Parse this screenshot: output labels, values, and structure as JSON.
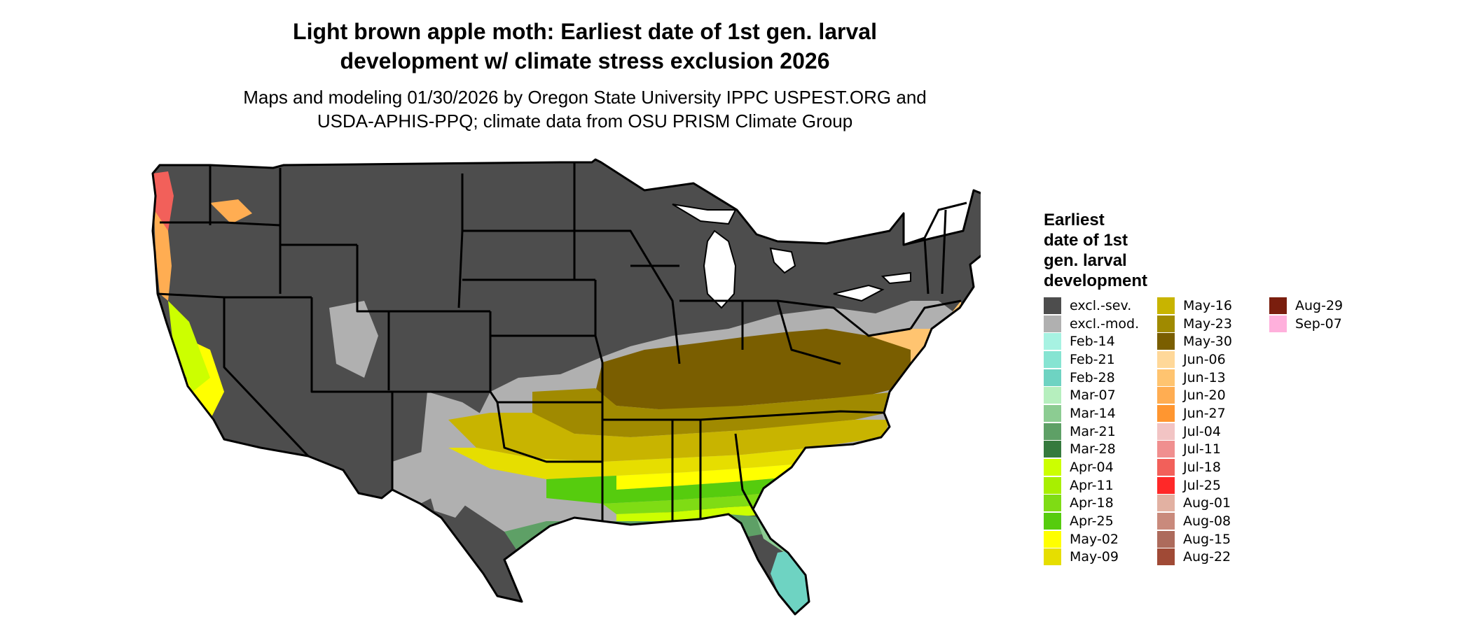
{
  "title_line1": "Light brown apple moth: Earliest date of 1st gen. larval",
  "title_line2": "development w/ climate stress exclusion 2026",
  "subtitle_line1": "Maps and modeling 01/30/2026 by Oregon State University IPPC USPEST.ORG and",
  "subtitle_line2": "USDA-APHIS-PPQ; climate data from OSU PRISM Climate Group",
  "legend": {
    "title_lines": [
      "Earliest",
      "date of 1st",
      "gen. larval",
      "development"
    ],
    "items": [
      {
        "label": "excl.-sev.",
        "color": "#4d4d4d"
      },
      {
        "label": "excl.-mod.",
        "color": "#b0b0b0"
      },
      {
        "label": "Feb-14",
        "color": "#a7f2e2"
      },
      {
        "label": "Feb-21",
        "color": "#86e4d2"
      },
      {
        "label": "Feb-28",
        "color": "#6ed3c2"
      },
      {
        "label": "Mar-07",
        "color": "#b6efbe"
      },
      {
        "label": "Mar-14",
        "color": "#8ccc92"
      },
      {
        "label": "Mar-21",
        "color": "#5ea066"
      },
      {
        "label": "Mar-28",
        "color": "#357a3d"
      },
      {
        "label": "Apr-04",
        "color": "#ccff00"
      },
      {
        "label": "Apr-11",
        "color": "#a8ef00"
      },
      {
        "label": "Apr-18",
        "color": "#7fdc14"
      },
      {
        "label": "Apr-25",
        "color": "#56cc0e"
      },
      {
        "label": "May-02",
        "color": "#ffff00"
      },
      {
        "label": "May-09",
        "color": "#e6de00"
      },
      {
        "label": "May-16",
        "color": "#c8b400"
      },
      {
        "label": "May-23",
        "color": "#a08a00"
      },
      {
        "label": "May-30",
        "color": "#7a5e00"
      },
      {
        "label": "Jun-06",
        "color": "#ffd899"
      },
      {
        "label": "Jun-13",
        "color": "#ffc470"
      },
      {
        "label": "Jun-20",
        "color": "#ffad52"
      },
      {
        "label": "Jun-27",
        "color": "#ff9630"
      },
      {
        "label": "Jul-04",
        "color": "#f2c4c4"
      },
      {
        "label": "Jul-11",
        "color": "#f08f8f"
      },
      {
        "label": "Jul-18",
        "color": "#f2605a"
      },
      {
        "label": "Jul-25",
        "color": "#ff2828"
      },
      {
        "label": "Aug-01",
        "color": "#e2b1a2"
      },
      {
        "label": "Aug-08",
        "color": "#c98a7c"
      },
      {
        "label": "Aug-15",
        "color": "#ad6b5c"
      },
      {
        "label": "Aug-22",
        "color": "#a04a36"
      },
      {
        "label": "Aug-29",
        "color": "#7a1e0e"
      },
      {
        "label": "Sep-07",
        "color": "#ffb0dc"
      }
    ]
  },
  "colors": {
    "excluded_severe": "#4d4d4d",
    "excluded_moderate": "#b0b0b0",
    "state_border": "#000000"
  }
}
